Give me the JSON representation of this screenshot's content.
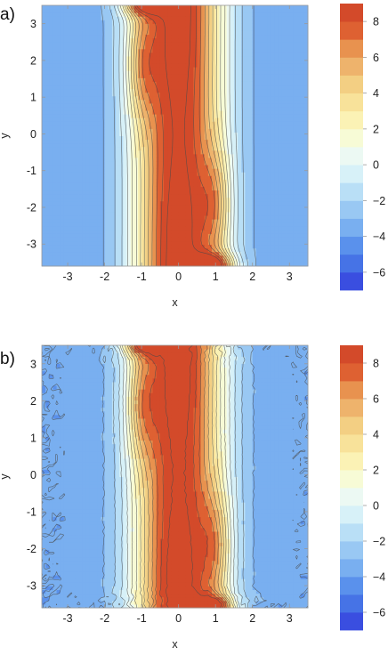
{
  "chart_data": [
    {
      "type": "contour",
      "panel_label": "a)",
      "xlabel": "x",
      "ylabel": "y",
      "xlim": [
        -3.7,
        3.5
      ],
      "ylim": [
        -3.6,
        3.5
      ],
      "xticks": [
        "-3",
        "-2",
        "-1",
        "0",
        "1",
        "2",
        "3"
      ],
      "xtick_values": [
        -3,
        -2,
        -1,
        0,
        1,
        2,
        3
      ],
      "yticks": [
        "-3",
        "-2",
        "-1",
        "0",
        "1",
        "2",
        "3"
      ],
      "ytick_values": [
        -3,
        -2,
        -1,
        0,
        1,
        2,
        3
      ],
      "levels": [
        -7,
        -6,
        -5,
        -4,
        -3,
        -2,
        -1,
        0,
        1,
        2,
        3,
        4,
        5,
        6,
        7,
        8,
        9
      ],
      "noisy": false,
      "colorbar": {
        "ticks": [
          "8",
          "6",
          "4",
          "2",
          "0",
          "−2",
          "−4",
          "−6"
        ],
        "tick_values": [
          8,
          6,
          4,
          2,
          0,
          -2,
          -4,
          -6
        ]
      }
    },
    {
      "type": "contour",
      "panel_label": "b)",
      "xlabel": "x",
      "ylabel": "y",
      "xlim": [
        -3.7,
        3.5
      ],
      "ylim": [
        -3.6,
        3.5
      ],
      "xticks": [
        "-3",
        "-2",
        "-1",
        "0",
        "1",
        "2",
        "3"
      ],
      "xtick_values": [
        -3,
        -2,
        -1,
        0,
        1,
        2,
        3
      ],
      "yticks": [
        "-3",
        "-2",
        "-1",
        "0",
        "1",
        "2",
        "3"
      ],
      "ytick_values": [
        -3,
        -2,
        -1,
        0,
        1,
        2,
        3
      ],
      "levels": [
        -7,
        -6,
        -5,
        -4,
        -3,
        -2,
        -1,
        0,
        1,
        2,
        3,
        4,
        5,
        6,
        7,
        8,
        9
      ],
      "noisy": true,
      "colorbar": {
        "ticks": [
          "8",
          "6",
          "4",
          "2",
          "0",
          "−2",
          "−4",
          "−6"
        ],
        "tick_values": [
          8,
          6,
          4,
          2,
          0,
          -2,
          -4,
          -6
        ]
      }
    }
  ],
  "colors": [
    "#3a4ee0",
    "#4673e6",
    "#5a91ec",
    "#79aff0",
    "#99c8f3",
    "#b9dff6",
    "#d7f1f8",
    "#ecf9f3",
    "#f7fbd6",
    "#fbf2b5",
    "#f8e29a",
    "#f3cf83",
    "#eeb36c",
    "#e8924f",
    "#de6132",
    "#d34a2a"
  ]
}
